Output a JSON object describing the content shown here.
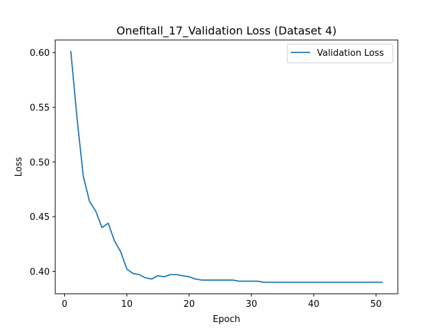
{
  "chart_data": {
    "type": "line",
    "title": "Onefitall_17_Validation Loss  (Dataset 4)",
    "xlabel": "Epoch",
    "ylabel": "Loss",
    "xlim": [
      -1.5,
      53.5
    ],
    "ylim": [
      0.3795,
      0.6115
    ],
    "xticks": [
      0,
      10,
      20,
      30,
      40,
      50
    ],
    "xtick_labels": [
      "0",
      "10",
      "20",
      "30",
      "40",
      "50"
    ],
    "yticks": [
      0.4,
      0.45,
      0.5,
      0.55,
      0.6
    ],
    "ytick_labels": [
      "0.40",
      "0.45",
      "0.50",
      "0.55",
      "0.60"
    ],
    "grid": false,
    "legend_position": "top-right",
    "series": [
      {
        "name": "Validation Loss",
        "color": "#1f77b4",
        "x": [
          1,
          2,
          3,
          4,
          5,
          6,
          7,
          8,
          9,
          10,
          11,
          12,
          13,
          14,
          15,
          16,
          17,
          18,
          19,
          20,
          21,
          22,
          23,
          24,
          25,
          26,
          27,
          28,
          29,
          30,
          31,
          32,
          33,
          34,
          35,
          36,
          37,
          38,
          39,
          40,
          41,
          42,
          43,
          44,
          45,
          46,
          47,
          48,
          49,
          50,
          51
        ],
        "y": [
          0.601,
          0.54,
          0.487,
          0.464,
          0.455,
          0.44,
          0.444,
          0.428,
          0.418,
          0.402,
          0.398,
          0.397,
          0.394,
          0.393,
          0.396,
          0.395,
          0.397,
          0.397,
          0.396,
          0.395,
          0.393,
          0.392,
          0.392,
          0.392,
          0.392,
          0.392,
          0.392,
          0.391,
          0.391,
          0.391,
          0.391,
          0.39,
          0.39,
          0.39,
          0.39,
          0.39,
          0.39,
          0.39,
          0.39,
          0.39,
          0.39,
          0.39,
          0.39,
          0.39,
          0.39,
          0.39,
          0.39,
          0.39,
          0.39,
          0.39,
          0.39
        ]
      }
    ]
  }
}
